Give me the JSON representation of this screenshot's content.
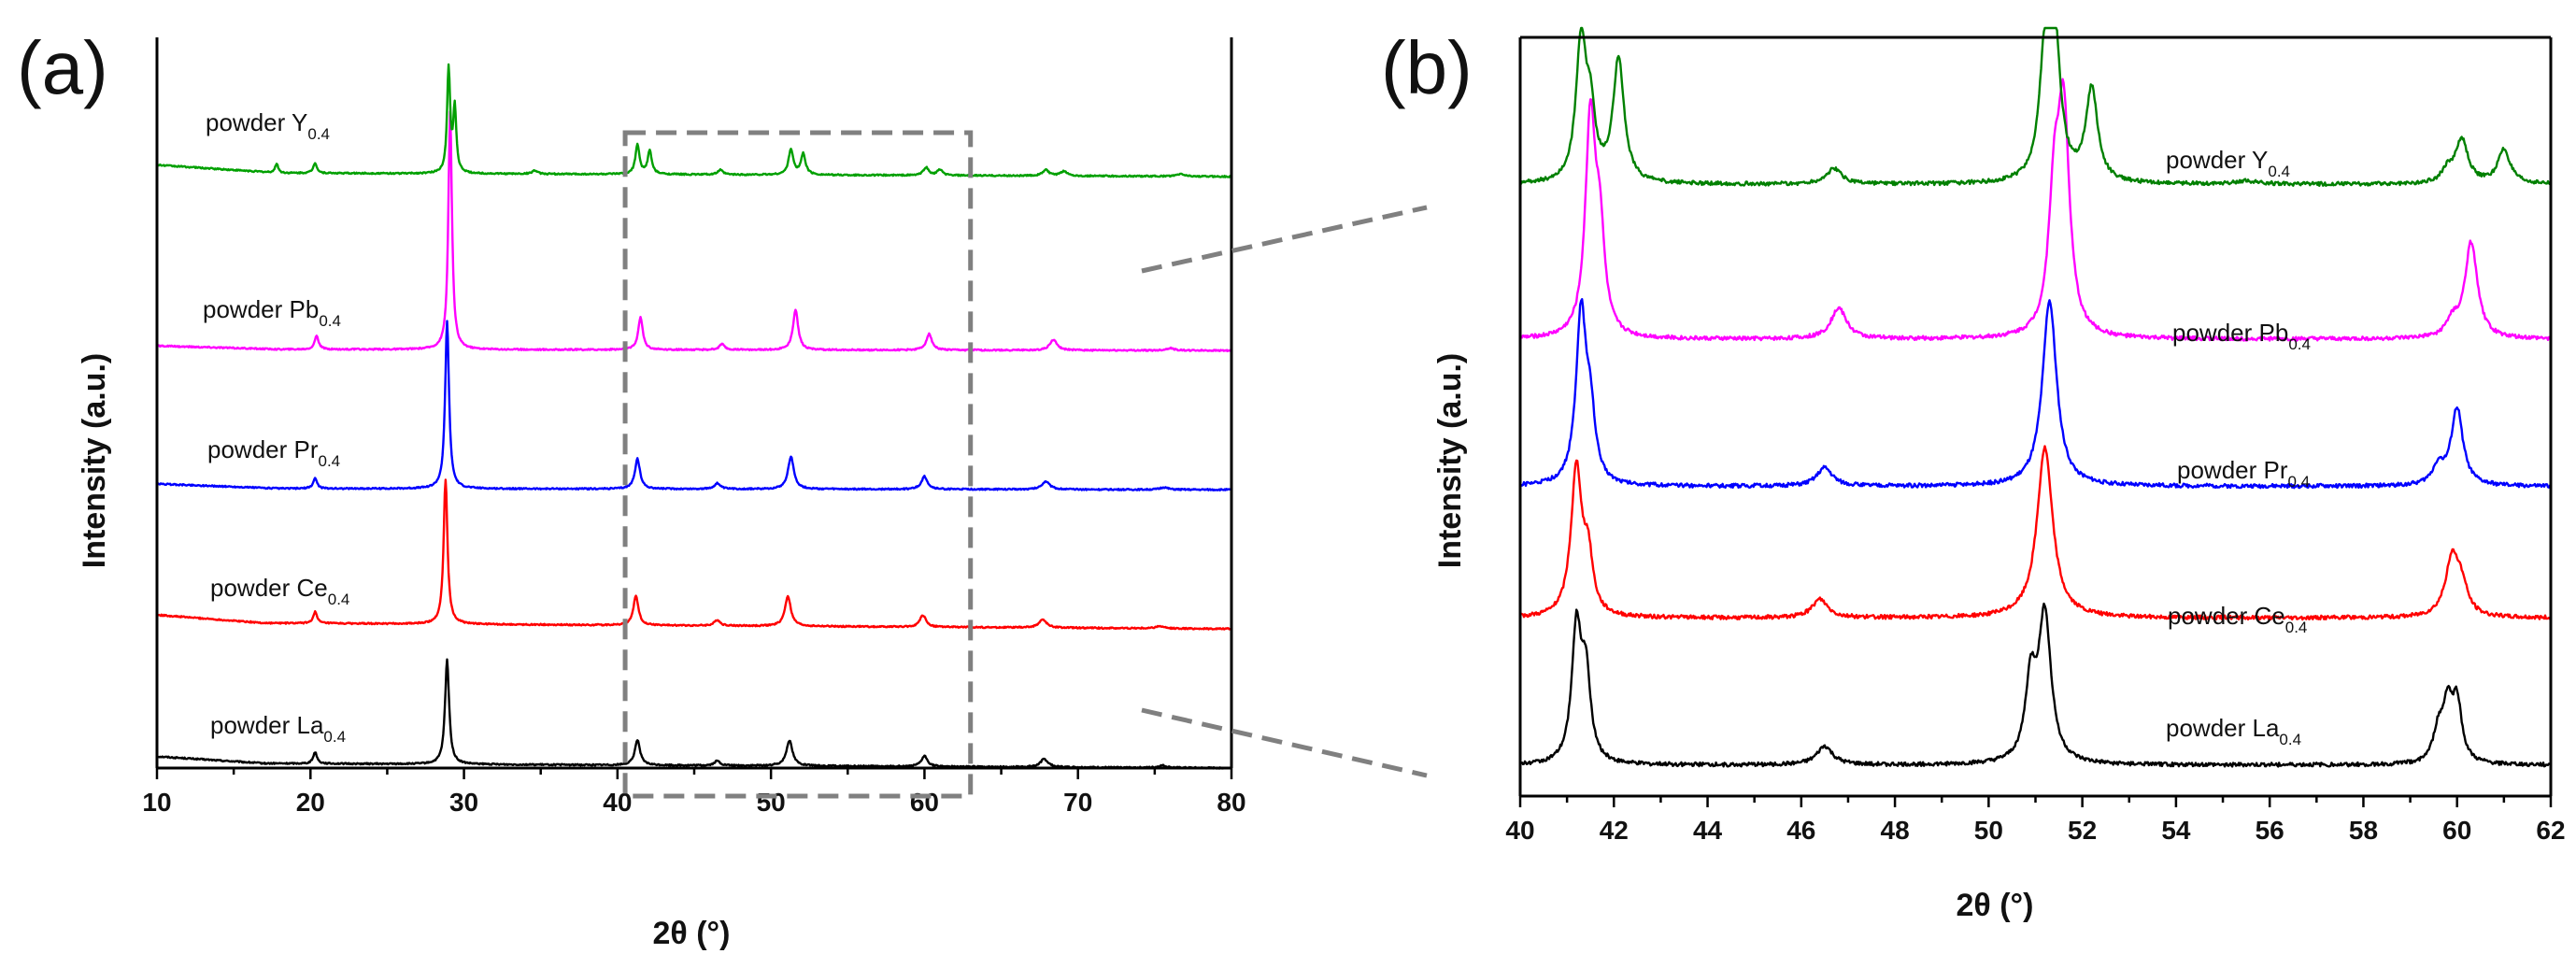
{
  "chart_data": [
    {
      "panel": "(a)",
      "type": "line",
      "xlabel": "2θ (°)",
      "ylabel": "Intensity (a.u.)",
      "xlim": [
        10,
        80
      ],
      "xticks": [
        "10",
        "20",
        "30",
        "40",
        "50",
        "60",
        "70",
        "80"
      ],
      "ylim": [
        0,
        6.3
      ],
      "yticks": [],
      "zoom_region": [
        40.5,
        63
      ],
      "series": [
        {
          "name": "powder La",
          "subscript": "0.4",
          "color": "#000000",
          "offset": 0.0,
          "baseline": [
            [
              10,
              0.1
            ],
            [
              17,
              0.04
            ],
            [
              80,
              0.0
            ]
          ],
          "peaks": [
            [
              20.3,
              0.1,
              0.15
            ],
            [
              28.9,
              0.9,
              0.16
            ],
            [
              41.3,
              0.22,
              0.2
            ],
            [
              46.5,
              0.04,
              0.22
            ],
            [
              51.2,
              0.22,
              0.24
            ],
            [
              60.0,
              0.09,
              0.24
            ],
            [
              67.8,
              0.07,
              0.3
            ],
            [
              75.5,
              0.02,
              0.3
            ]
          ]
        },
        {
          "name": "powder Ce",
          "subscript": "0.4",
          "color": "#ff0000",
          "offset": 1.2,
          "baseline": [
            [
              10,
              0.12
            ],
            [
              17,
              0.05
            ],
            [
              80,
              0.0
            ]
          ],
          "peaks": [
            [
              20.3,
              0.1,
              0.15
            ],
            [
              28.8,
              1.25,
              0.15
            ],
            [
              41.2,
              0.25,
              0.2
            ],
            [
              46.5,
              0.05,
              0.22
            ],
            [
              51.1,
              0.26,
              0.23
            ],
            [
              59.9,
              0.1,
              0.24
            ],
            [
              67.7,
              0.07,
              0.3
            ],
            [
              75.3,
              0.02,
              0.3
            ]
          ]
        },
        {
          "name": "powder Pr",
          "subscript": "0.4",
          "color": "#0000ff",
          "offset": 2.4,
          "baseline": [
            [
              10,
              0.05
            ],
            [
              18,
              0.01
            ],
            [
              80,
              0.0
            ]
          ],
          "peaks": [
            [
              20.3,
              0.09,
              0.15
            ],
            [
              28.9,
              1.45,
              0.15
            ],
            [
              41.3,
              0.26,
              0.2
            ],
            [
              46.5,
              0.05,
              0.22
            ],
            [
              51.3,
              0.28,
              0.23
            ],
            [
              60.0,
              0.11,
              0.24
            ],
            [
              67.9,
              0.07,
              0.3
            ],
            [
              75.6,
              0.02,
              0.3
            ]
          ]
        },
        {
          "name": "powder Pb",
          "subscript": "0.4",
          "color": "#ff00ff",
          "offset": 3.6,
          "baseline": [
            [
              10,
              0.04
            ],
            [
              18,
              0.01
            ],
            [
              80,
              0.0
            ]
          ],
          "peaks": [
            [
              20.4,
              0.12,
              0.15
            ],
            [
              29.1,
              2.05,
              0.14
            ],
            [
              41.5,
              0.28,
              0.18
            ],
            [
              46.8,
              0.05,
              0.2
            ],
            [
              51.6,
              0.35,
              0.2
            ],
            [
              60.3,
              0.14,
              0.22
            ],
            [
              68.4,
              0.09,
              0.28
            ],
            [
              76.0,
              0.02,
              0.3
            ]
          ]
        },
        {
          "name": "powder Y",
          "subscript": "0.4",
          "color": "#00a000",
          "offset": 5.1,
          "baseline": [
            [
              10,
              0.1
            ],
            [
              18,
              0.03
            ],
            [
              80,
              0.0
            ]
          ],
          "peaks": [
            [
              17.8,
              0.08,
              0.12
            ],
            [
              20.3,
              0.09,
              0.14
            ],
            [
              29.0,
              0.9,
              0.12
            ],
            [
              29.4,
              0.55,
              0.12
            ],
            [
              34.6,
              0.03,
              0.2
            ],
            [
              41.3,
              0.25,
              0.16
            ],
            [
              42.1,
              0.2,
              0.16
            ],
            [
              46.7,
              0.04,
              0.2
            ],
            [
              51.3,
              0.22,
              0.18
            ],
            [
              52.1,
              0.18,
              0.18
            ],
            [
              60.1,
              0.07,
              0.2
            ],
            [
              61.0,
              0.05,
              0.2
            ],
            [
              67.9,
              0.05,
              0.25
            ],
            [
              69.1,
              0.04,
              0.25
            ],
            [
              76.7,
              0.02,
              0.3
            ]
          ]
        }
      ]
    },
    {
      "panel": "(b)",
      "type": "line",
      "xlabel": "2θ (°)",
      "ylabel": "Intensity (a.u.)",
      "xlim": [
        40,
        62
      ],
      "xticks": [
        "40",
        "42",
        "44",
        "46",
        "48",
        "50",
        "52",
        "54",
        "56",
        "58",
        "60",
        "62"
      ],
      "ylim": [
        -0.2,
        4.7
      ],
      "yticks": [],
      "series": [
        {
          "name": "powder La",
          "subscript": "0.4",
          "color": "#000000",
          "offset": 0.0,
          "baseline": [
            [
              40,
              0.0
            ],
            [
              62,
              0.0
            ]
          ],
          "peaks": [
            [
              41.2,
              0.85,
              0.12
            ],
            [
              41.4,
              0.55,
              0.12
            ],
            [
              46.5,
              0.12,
              0.2
            ],
            [
              50.9,
              0.5,
              0.14
            ],
            [
              51.2,
              0.95,
              0.16
            ],
            [
              59.6,
              0.2,
              0.13
            ],
            [
              59.8,
              0.35,
              0.12
            ],
            [
              60.0,
              0.38,
              0.12
            ]
          ]
        },
        {
          "name": "powder Ce",
          "subscript": "0.4",
          "color": "#ff0000",
          "offset": 0.95,
          "baseline": [
            [
              40,
              0.0
            ],
            [
              62,
              0.0
            ]
          ],
          "peaks": [
            [
              41.2,
              0.95,
              0.14
            ],
            [
              41.45,
              0.35,
              0.12
            ],
            [
              46.4,
              0.12,
              0.2
            ],
            [
              51.2,
              1.1,
              0.2
            ],
            [
              59.9,
              0.38,
              0.18
            ],
            [
              60.1,
              0.15,
              0.15
            ]
          ]
        },
        {
          "name": "powder Pr",
          "subscript": "0.4",
          "color": "#0000ff",
          "offset": 1.8,
          "baseline": [
            [
              40,
              0.0
            ],
            [
              62,
              0.0
            ]
          ],
          "peaks": [
            [
              41.3,
              1.1,
              0.13
            ],
            [
              41.5,
              0.4,
              0.12
            ],
            [
              46.5,
              0.12,
              0.2
            ],
            [
              51.3,
              1.2,
              0.18
            ],
            [
              59.6,
              0.12,
              0.15
            ],
            [
              60.0,
              0.5,
              0.15
            ]
          ]
        },
        {
          "name": "powder Pb",
          "subscript": "0.4",
          "color": "#ff00ff",
          "offset": 2.75,
          "baseline": [
            [
              40,
              0.0
            ],
            [
              62,
              0.0
            ]
          ],
          "peaks": [
            [
              41.5,
              1.4,
              0.13
            ],
            [
              41.7,
              0.6,
              0.12
            ],
            [
              46.8,
              0.2,
              0.2
            ],
            [
              51.4,
              0.8,
              0.14
            ],
            [
              51.6,
              1.4,
              0.15
            ],
            [
              59.9,
              0.1,
              0.15
            ],
            [
              60.3,
              0.62,
              0.16
            ]
          ]
        },
        {
          "name": "powder Y",
          "subscript": "0.4",
          "color": "#008000",
          "offset": 3.75,
          "baseline": [
            [
              40,
              0.0
            ],
            [
              62,
              0.0
            ]
          ],
          "peaks": [
            [
              41.3,
              0.9,
              0.13
            ],
            [
              41.5,
              0.4,
              0.12
            ],
            [
              42.1,
              0.8,
              0.14
            ],
            [
              46.7,
              0.1,
              0.2
            ],
            [
              51.2,
              0.7,
              0.14
            ],
            [
              51.4,
              0.95,
              0.15
            ],
            [
              52.2,
              0.6,
              0.15
            ],
            [
              59.8,
              0.08,
              0.15
            ],
            [
              60.1,
              0.28,
              0.16
            ],
            [
              61.0,
              0.22,
              0.16
            ],
            [
              55.5,
              0.02,
              0.3
            ]
          ]
        }
      ]
    }
  ]
}
